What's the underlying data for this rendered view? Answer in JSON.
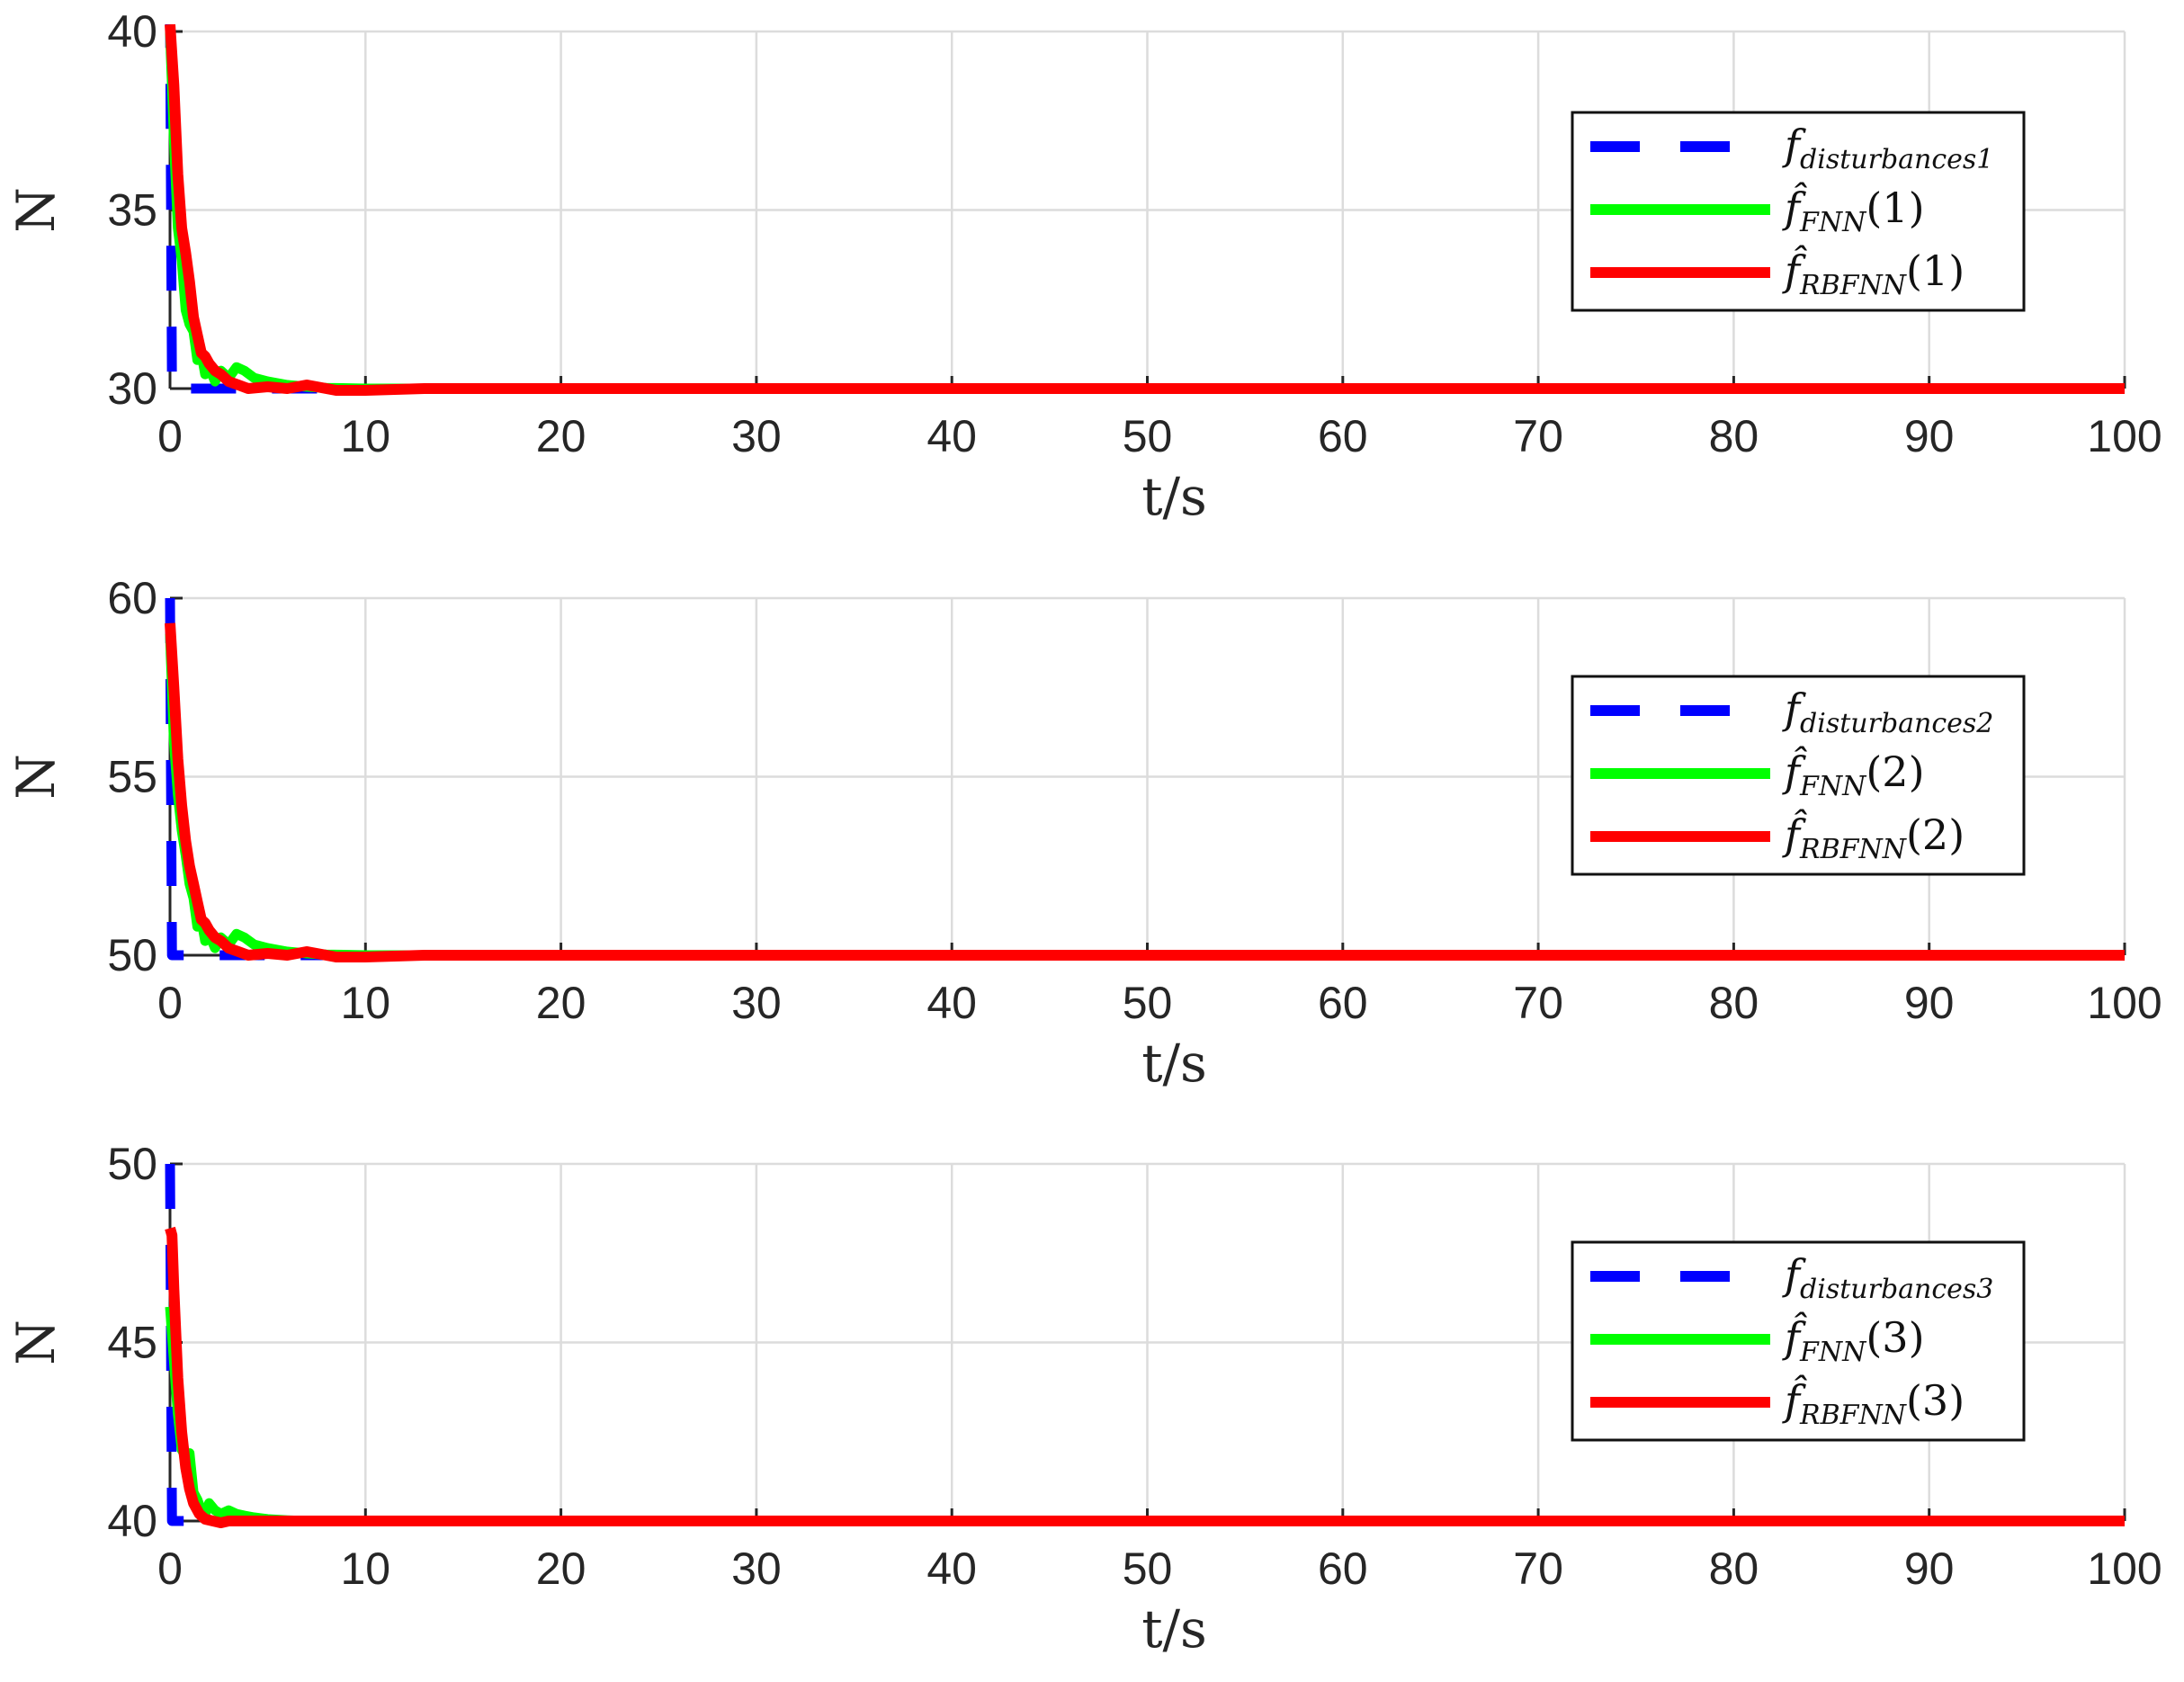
{
  "colors": {
    "disturbance": "#0000ff",
    "fnn": "#00ff00",
    "rbfnn": "#ff0000",
    "grid": "#dcdcdc",
    "axis": "#262626"
  },
  "chart_data": [
    {
      "type": "line",
      "xlabel": "t/s",
      "ylabel": "N",
      "xlim": [
        0,
        100
      ],
      "ylim": [
        30,
        40
      ],
      "xticks": [
        "0",
        "10",
        "20",
        "30",
        "40",
        "50",
        "60",
        "70",
        "80",
        "90",
        "100"
      ],
      "yticks": [
        "30",
        "35",
        "40"
      ],
      "grid": true,
      "legend_position": "upper-right",
      "legend": [
        {
          "base": "f",
          "sub": "disturbances1",
          "post": "",
          "style": "dashed",
          "color": "#0000ff"
        },
        {
          "base": "f̂",
          "sub": "FNN",
          "post": "(1)",
          "style": "solid",
          "color": "#00ff00"
        },
        {
          "base": "f̂",
          "sub": "RBFNN",
          "post": "(1)",
          "style": "solid",
          "color": "#ff0000"
        }
      ],
      "series": [
        {
          "style": "dashed",
          "color": "#0000ff",
          "x": [
            0,
            0.1,
            100
          ],
          "y": [
            40.8,
            30,
            30
          ]
        },
        {
          "style": "solid",
          "color": "#00ff00",
          "x": [
            0,
            0.2,
            0.4,
            0.6,
            0.8,
            1.0,
            1.2,
            1.4,
            1.6,
            1.8,
            2.0,
            2.3,
            2.6,
            3.0,
            3.4,
            3.8,
            4.3,
            5.0,
            6.0,
            7.0,
            8.0,
            10.0,
            15.0,
            100
          ],
          "y": [
            40,
            37,
            34.5,
            33.6,
            32.2,
            31.8,
            31.6,
            30.8,
            31.0,
            30.4,
            30.6,
            30.2,
            30.5,
            30.3,
            30.6,
            30.5,
            30.3,
            30.2,
            30.1,
            30.05,
            30.02,
            30.0,
            30.0,
            30.0
          ]
        },
        {
          "style": "solid",
          "color": "#ff0000",
          "x": [
            0,
            0.2,
            0.4,
            0.6,
            0.8,
            1.0,
            1.2,
            1.4,
            1.6,
            1.8,
            2.0,
            2.3,
            2.6,
            3.0,
            3.5,
            4.0,
            5.0,
            6.0,
            7.0,
            8.5,
            10.0,
            13.0,
            20.0,
            100
          ],
          "y": [
            40.2,
            38.5,
            36.0,
            34.5,
            33.8,
            33.0,
            32.0,
            31.5,
            31.0,
            30.9,
            30.7,
            30.5,
            30.4,
            30.2,
            30.1,
            30.0,
            30.05,
            30.0,
            30.1,
            29.95,
            29.95,
            30.0,
            30.0,
            30.0
          ]
        }
      ]
    },
    {
      "type": "line",
      "xlabel": "t/s",
      "ylabel": "N",
      "xlim": [
        0,
        100
      ],
      "ylim": [
        50,
        60
      ],
      "xticks": [
        "0",
        "10",
        "20",
        "30",
        "40",
        "50",
        "60",
        "70",
        "80",
        "90",
        "100"
      ],
      "yticks": [
        "50",
        "55",
        "60"
      ],
      "grid": true,
      "legend_position": "right",
      "legend": [
        {
          "base": "f",
          "sub": "disturbances2",
          "post": "",
          "style": "dashed",
          "color": "#0000ff"
        },
        {
          "base": "f̂",
          "sub": "FNN",
          "post": "(2)",
          "style": "solid",
          "color": "#00ff00"
        },
        {
          "base": "f̂",
          "sub": "RBFNN",
          "post": "(2)",
          "style": "solid",
          "color": "#ff0000"
        }
      ],
      "series": [
        {
          "style": "dashed",
          "color": "#0000ff",
          "x": [
            0,
            0.1,
            100
          ],
          "y": [
            60,
            50,
            50
          ]
        },
        {
          "style": "solid",
          "color": "#00ff00",
          "x": [
            0,
            0.2,
            0.4,
            0.6,
            0.8,
            1.0,
            1.2,
            1.4,
            1.6,
            1.8,
            2.0,
            2.3,
            2.6,
            3.0,
            3.4,
            3.8,
            4.3,
            5.0,
            6.0,
            7.0,
            8.0,
            10.0,
            15.0,
            100
          ],
          "y": [
            59,
            56,
            54.5,
            53.5,
            52.8,
            52.0,
            51.6,
            50.8,
            51.0,
            50.4,
            50.6,
            50.2,
            50.5,
            50.3,
            50.6,
            50.5,
            50.3,
            50.2,
            50.1,
            50.05,
            50.02,
            50.0,
            50.0,
            50.0
          ]
        },
        {
          "style": "solid",
          "color": "#ff0000",
          "x": [
            0,
            0.2,
            0.4,
            0.6,
            0.8,
            1.0,
            1.2,
            1.4,
            1.6,
            1.8,
            2.0,
            2.3,
            2.6,
            3.0,
            3.5,
            4.0,
            5.0,
            6.0,
            7.0,
            8.5,
            10.0,
            13.0,
            20.0,
            100
          ],
          "y": [
            59.3,
            57.5,
            55.5,
            54.2,
            53.2,
            52.5,
            52.0,
            51.5,
            51.0,
            50.9,
            50.7,
            50.5,
            50.4,
            50.2,
            50.1,
            50.0,
            50.05,
            50.0,
            50.1,
            49.95,
            49.95,
            50.0,
            50.0,
            50.0
          ]
        }
      ]
    },
    {
      "type": "line",
      "xlabel": "t/s",
      "ylabel": "N",
      "xlim": [
        0,
        100
      ],
      "ylim": [
        40,
        50
      ],
      "xticks": [
        "0",
        "10",
        "20",
        "30",
        "40",
        "50",
        "60",
        "70",
        "80",
        "90",
        "100"
      ],
      "yticks": [
        "40",
        "45",
        "50"
      ],
      "grid": true,
      "legend_position": "right",
      "legend": [
        {
          "base": "f",
          "sub": "disturbances3",
          "post": "",
          "style": "dashed",
          "color": "#0000ff"
        },
        {
          "base": "f̂",
          "sub": "FNN",
          "post": "(3)",
          "style": "solid",
          "color": "#00ff00"
        },
        {
          "base": "f̂",
          "sub": "RBFNN",
          "post": "(3)",
          "style": "solid",
          "color": "#ff0000"
        }
      ],
      "series": [
        {
          "style": "dashed",
          "color": "#0000ff",
          "x": [
            0,
            0.1,
            100
          ],
          "y": [
            50,
            40,
            40
          ]
        },
        {
          "style": "solid",
          "color": "#00ff00",
          "x": [
            0,
            0.2,
            0.4,
            0.6,
            0.8,
            1.0,
            1.2,
            1.4,
            1.6,
            1.8,
            2.0,
            2.3,
            2.6,
            3.0,
            3.4,
            3.8,
            4.3,
            5.0,
            6.0,
            7.0,
            8.0,
            10.0,
            15.0,
            100
          ],
          "y": [
            46,
            44.5,
            43.0,
            42.0,
            41.8,
            41.9,
            40.8,
            40.6,
            40.3,
            40.2,
            40.5,
            40.3,
            40.2,
            40.3,
            40.2,
            40.15,
            40.1,
            40.05,
            40.02,
            40.0,
            40.0,
            40.0,
            40.0,
            40.0
          ]
        },
        {
          "style": "solid",
          "color": "#ff0000",
          "x": [
            0,
            0.1,
            0.2,
            0.4,
            0.6,
            0.8,
            1.0,
            1.2,
            1.5,
            1.8,
            2.2,
            2.6,
            3.0,
            4.0,
            5.0,
            7.0,
            10.0,
            20.0,
            100
          ],
          "y": [
            48.2,
            48.0,
            46.5,
            44.0,
            42.5,
            41.5,
            40.9,
            40.5,
            40.2,
            40.05,
            40.0,
            39.95,
            40.0,
            40.0,
            40.0,
            40.0,
            40.0,
            40.0,
            40.0
          ]
        }
      ]
    }
  ]
}
